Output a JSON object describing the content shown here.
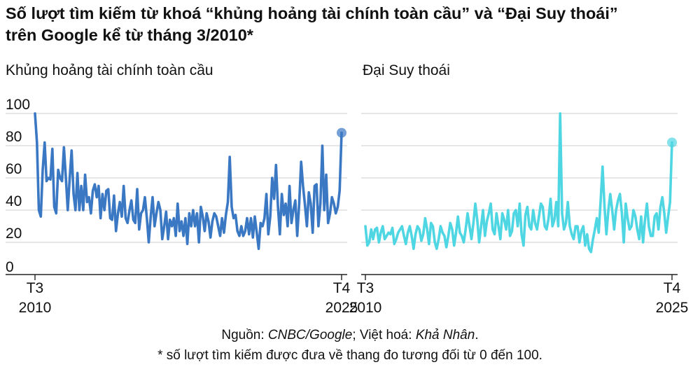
{
  "title": {
    "line1": "Số lượt tìm kiếm từ khoá “khủng hoảng tài chính toàn cầu” và “Đại Suy thoái”",
    "line2": "trên Google kể từ tháng 3/2010*"
  },
  "footer": {
    "source_prefix": "Nguồn: ",
    "source": "CNBC/Google",
    "sep": "; Việt hoá: ",
    "author": "Khả Nhân",
    "end": ".",
    "note": "* số lượt tìm kiếm được đưa về thang đo tương đối từ 0 đến 100."
  },
  "chart_data": [
    {
      "type": "line",
      "title": "Khủng hoảng tài chính toàn cầu",
      "color": "#3b78c3",
      "ylim": [
        0,
        100
      ],
      "yticks": [
        "100",
        "80",
        "60",
        "40",
        "20",
        "0"
      ],
      "xticks": [
        {
          "top": "T3",
          "bottom": "2010"
        },
        {
          "top": "T4",
          "bottom": "2025"
        }
      ],
      "x_range": [
        "2010-03",
        "2025-04"
      ],
      "grid": true,
      "values": [
        100,
        82,
        40,
        36,
        65,
        82,
        58,
        60,
        59,
        78,
        42,
        38,
        65,
        60,
        58,
        79,
        60,
        40,
        60,
        77,
        50,
        40,
        63,
        40,
        55,
        40,
        62,
        45,
        48,
        38,
        52,
        56,
        48,
        55,
        35,
        50,
        40,
        52,
        53,
        35,
        34,
        49,
        27,
        38,
        45,
        36,
        55,
        35,
        32,
        40,
        46,
        34,
        32,
        53,
        28,
        38,
        40,
        48,
        35,
        20,
        36,
        48,
        30,
        38,
        45,
        40,
        22,
        30,
        39,
        22,
        34,
        30,
        35,
        24,
        44,
        27,
        33,
        24,
        35,
        19,
        38,
        30,
        40,
        30,
        38,
        20,
        42,
        36,
        27,
        38,
        33,
        23,
        33,
        38,
        36,
        30,
        24,
        35,
        26,
        37,
        45,
        73,
        42,
        35,
        37,
        27,
        24,
        30,
        24,
        27,
        35,
        25,
        35,
        23,
        36,
        26,
        16,
        32,
        30,
        35,
        50,
        25,
        36,
        60,
        47,
        68,
        42,
        25,
        50,
        37,
        44,
        30,
        55,
        32,
        40,
        46,
        24,
        44,
        70,
        55,
        43,
        30,
        51,
        44,
        26,
        55,
        56,
        30,
        44,
        80,
        40,
        62,
        32,
        38,
        48,
        44,
        38,
        42,
        52,
        88
      ],
      "last_point_highlight": true
    },
    {
      "type": "line",
      "title": "Đại Suy thoái",
      "color": "#4fd6e3",
      "ylim": [
        0,
        100
      ],
      "xticks": [
        {
          "top": "T3",
          "bottom": "2010"
        },
        {
          "top": "T4",
          "bottom": "2025"
        }
      ],
      "x_range": [
        "2010-03",
        "2025-04"
      ],
      "grid": true,
      "values": [
        30,
        18,
        20,
        28,
        22,
        28,
        29,
        20,
        26,
        30,
        22,
        24,
        26,
        25,
        29,
        19,
        22,
        26,
        28,
        30,
        24,
        19,
        26,
        30,
        24,
        16,
        25,
        30,
        28,
        21,
        25,
        35,
        28,
        19,
        32,
        30,
        20,
        16,
        22,
        30,
        26,
        24,
        17,
        24,
        32,
        28,
        18,
        26,
        36,
        26,
        24,
        20,
        28,
        38,
        30,
        22,
        32,
        44,
        34,
        20,
        30,
        40,
        24,
        33,
        38,
        44,
        28,
        25,
        38,
        30,
        22,
        38,
        34,
        28,
        40,
        24,
        27,
        38,
        40,
        30,
        44,
        25,
        18,
        37,
        42,
        30,
        28,
        40,
        32,
        28,
        36,
        44,
        42,
        30,
        28,
        35,
        47,
        30,
        34,
        45,
        30,
        100,
        38,
        28,
        32,
        45,
        30,
        25,
        22,
        30,
        30,
        20,
        27,
        30,
        18,
        25,
        16,
        14,
        22,
        28,
        35,
        26,
        46,
        67,
        42,
        25,
        40,
        50,
        40,
        28,
        40,
        46,
        50,
        38,
        20,
        44,
        35,
        28,
        30,
        40,
        36,
        28,
        22,
        36,
        20,
        34,
        44,
        30,
        24,
        24,
        36,
        38,
        28,
        42,
        48,
        38,
        26,
        36,
        45,
        82
      ],
      "last_point_highlight": true
    }
  ]
}
